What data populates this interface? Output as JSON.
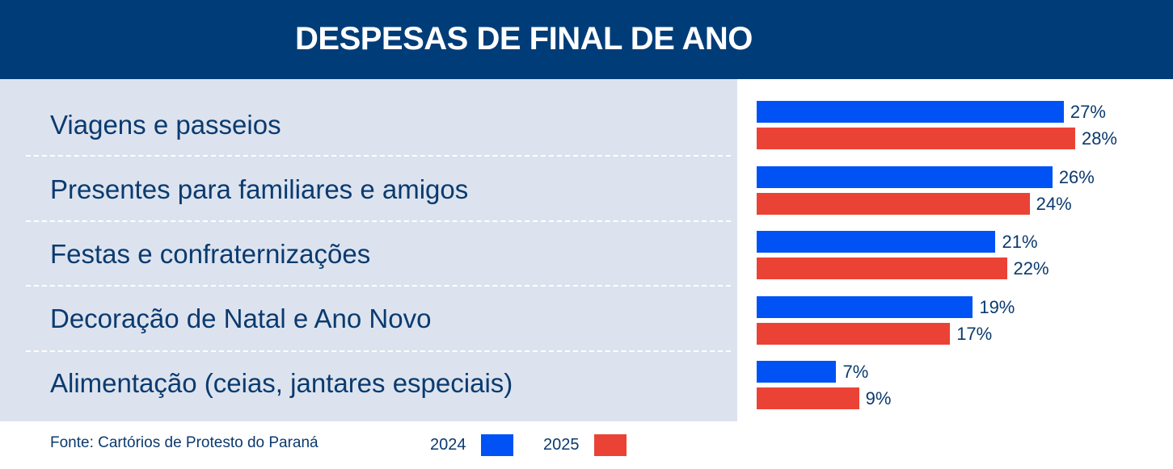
{
  "title": "DESPESAS DE FINAL DE ANO",
  "source": "Fonte: Cartórios de Protesto do Paraná",
  "colors": {
    "header": "#003d78",
    "panel": "#dce3ef",
    "s2024": "#0052f5",
    "s2025": "#ea4335",
    "text": "#0b3a6e"
  },
  "chart_data": {
    "type": "bar",
    "orientation": "horizontal",
    "title": "DESPESAS DE FINAL DE ANO",
    "categories": [
      "Viagens e passeios",
      "Presentes para familiares e amigos",
      "Festas e confraternizações",
      "Decoração de Natal e Ano Novo",
      "Alimentação (ceias, jantares especiais)"
    ],
    "series": [
      {
        "name": "2024",
        "color": "#0052f5",
        "values": [
          27,
          26,
          21,
          19,
          7
        ],
        "labels": [
          "27%",
          "26%",
          "21%",
          "19%",
          "7%"
        ]
      },
      {
        "name": "2025",
        "color": "#ea4335",
        "values": [
          28,
          24,
          22,
          17,
          9
        ],
        "labels": [
          "28%",
          "24%",
          "22%",
          "17%",
          "9%"
        ]
      }
    ],
    "legend": "bottom",
    "grid": false
  }
}
